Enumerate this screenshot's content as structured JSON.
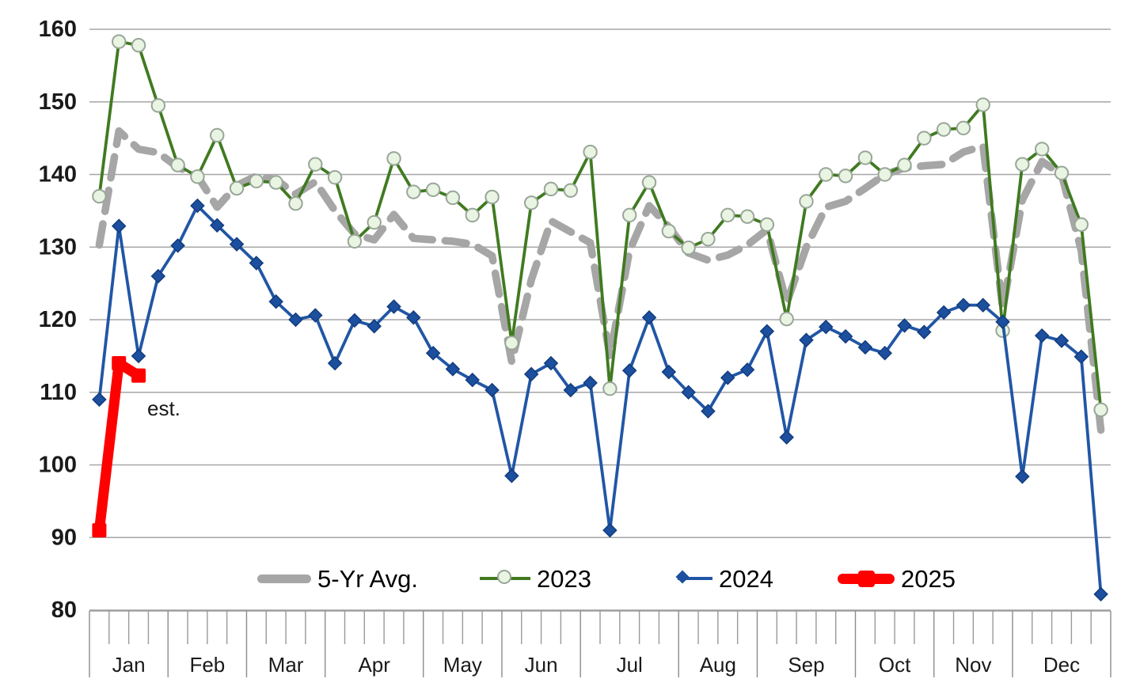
{
  "chart_data": {
    "type": "line",
    "title": "",
    "x_axis": {
      "unit": "week",
      "weeks_total": 52,
      "months": [
        {
          "label": "Jan",
          "weeks": 4
        },
        {
          "label": "Feb",
          "weeks": 4
        },
        {
          "label": "Mar",
          "weeks": 4
        },
        {
          "label": "Apr",
          "weeks": 5
        },
        {
          "label": "May",
          "weeks": 4
        },
        {
          "label": "Jun",
          "weeks": 4
        },
        {
          "label": "Jul",
          "weeks": 5
        },
        {
          "label": "Aug",
          "weeks": 4
        },
        {
          "label": "Sep",
          "weeks": 5
        },
        {
          "label": "Oct",
          "weeks": 4
        },
        {
          "label": "Nov",
          "weeks": 4
        },
        {
          "label": "Dec",
          "weeks": 5
        }
      ]
    },
    "y_axis": {
      "min": 80,
      "max": 160,
      "step": 10,
      "tick_labels": [
        "80",
        "90",
        "100",
        "110",
        "120",
        "130",
        "140",
        "150",
        "160"
      ],
      "grid": true,
      "gridline_color": "#a6a6a6"
    },
    "annotation": {
      "text": "est.",
      "target_series": "2025"
    },
    "legend": {
      "position": "bottom-center",
      "labels": {
        "avg": "5-Yr Avg.",
        "y2023": "2023",
        "y2024": "2024",
        "y2025": "2025"
      }
    },
    "series": [
      {
        "name": "5-Yr Avg.",
        "style": "dashed-thick",
        "marker": "none",
        "color": "#a6a6a6",
        "values": [
          130.3,
          146,
          143.5,
          143,
          141,
          139.8,
          135.5,
          138.5,
          139.8,
          139.3,
          137.3,
          139,
          135,
          131.8,
          131,
          134.5,
          131.2,
          131,
          130.8,
          130.4,
          128.8,
          114.2,
          125.5,
          133.6,
          132.1,
          130.6,
          115,
          129.5,
          135.7,
          132.8,
          129.2,
          128.2,
          128.9,
          130.3,
          132.4,
          122.3,
          130,
          135.5,
          136.3,
          138.1,
          140,
          140.9,
          141.2,
          141.4,
          143.1,
          143.9,
          121.5,
          136.5,
          141.8,
          140,
          129.5,
          104.8
        ]
      },
      {
        "name": "2023",
        "style": "solid",
        "marker": "circle",
        "color": "#417a21",
        "marker_fill": "#e9f4e2",
        "marker_stroke": "#98a698",
        "values": [
          137,
          158.3,
          157.8,
          149.5,
          141.3,
          139.7,
          145.4,
          138.1,
          139.1,
          138.9,
          136,
          141.4,
          139.6,
          130.8,
          133.4,
          142.2,
          137.6,
          137.9,
          136.8,
          134.4,
          136.9,
          116.8,
          136.1,
          138,
          137.8,
          143.1,
          110.5,
          134.4,
          138.9,
          132.2,
          129.9,
          131.1,
          134.4,
          134.2,
          133.1,
          120.1,
          136.3,
          140,
          139.8,
          142.3,
          140,
          141.3,
          145,
          146.2,
          146.4,
          149.6,
          118.5,
          141.4,
          143.5,
          140.2,
          133.1,
          107.6
        ]
      },
      {
        "name": "2024",
        "style": "solid",
        "marker": "diamond",
        "color": "#2156a5",
        "marker_fill": "#1c4f9e",
        "marker_stroke": "#123c7d",
        "values": [
          109,
          132.9,
          115,
          126,
          130.2,
          135.7,
          133,
          130.4,
          127.8,
          122.5,
          120,
          120.6,
          114,
          119.9,
          119.1,
          121.8,
          120.3,
          115.4,
          113.2,
          111.7,
          110.3,
          98.5,
          112.5,
          114,
          110.3,
          111.3,
          91,
          113,
          120.3,
          112.8,
          110,
          107.4,
          112,
          113.1,
          118.4,
          103.8,
          117.2,
          119,
          117.7,
          116.2,
          115.4,
          119.2,
          118.3,
          121,
          122,
          122,
          119.7,
          98.4,
          117.8,
          117.1,
          114.9,
          82.2
        ]
      },
      {
        "name": "2025",
        "style": "solid-thick",
        "marker": "square",
        "color": "#fe0000",
        "estimated": true,
        "values": [
          91,
          114,
          112.3
        ]
      }
    ]
  }
}
